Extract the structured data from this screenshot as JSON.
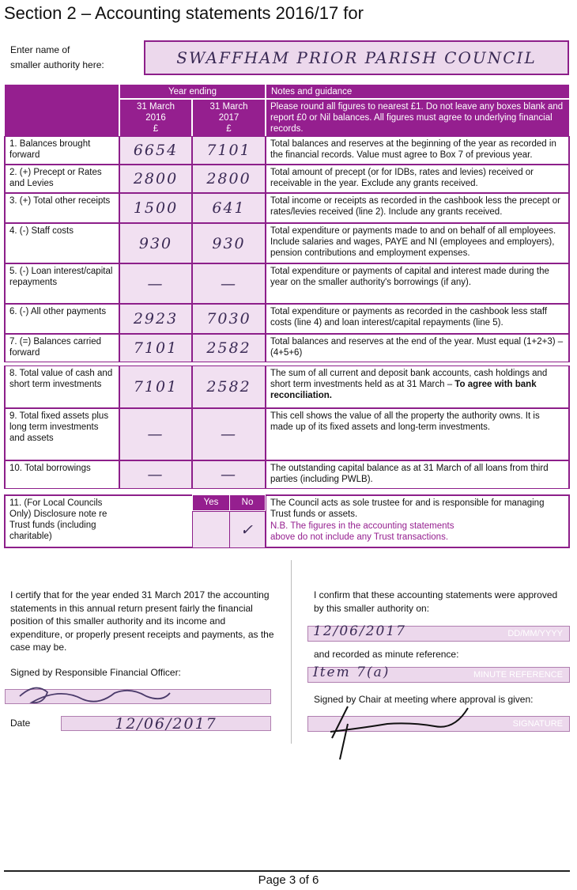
{
  "title": "Section 2 – Accounting statements 2016/17 for",
  "authority": {
    "label_line1": "Enter name of",
    "label_line2": "smaller authority here:",
    "value": "SWAFFHAM PRIOR PARISH COUNCIL"
  },
  "header": {
    "year_ending": "Year ending",
    "notes_title": "Notes and guidance",
    "col_2016": [
      "31 March",
      "2016",
      "£"
    ],
    "col_2017": [
      "31 March",
      "2017",
      "£"
    ],
    "notes_text": "Please round all figures to nearest £1. Do not leave any boxes blank and report £0 or Nil balances. All figures must agree to underlying financial records."
  },
  "rows": [
    {
      "label": "1.  Balances brought forward",
      "v2016": "6654",
      "v2017": "7101",
      "note": "Total balances and reserves at the beginning of the year as recorded in the financial records. Value must agree to Box 7 of previous year."
    },
    {
      "label": "2.  (+) Precept or Rates and Levies",
      "v2016": "2800",
      "v2017": "2800",
      "note": "Total amount of precept (or for IDBs, rates and levies) received or receivable in the year. Exclude any grants received."
    },
    {
      "label": "3.  (+) Total other receipts",
      "v2016": "1500",
      "v2017": "641",
      "note": "Total income or receipts as recorded in the cashbook less the precept or rates/levies received (line 2). Include any grants received."
    },
    {
      "label": "4.  (-) Staff costs",
      "v2016": "930",
      "v2017": "930",
      "note": "Total expenditure or payments made to and on behalf of all employees. Include salaries and wages, PAYE and NI (employees and employers), pension contributions and employment expenses."
    },
    {
      "label": "5.  (-) Loan interest/capital repayments",
      "v2016": "—",
      "v2017": "—",
      "note": "Total expenditure or payments of capital and interest made during the year on the smaller authority's borrowings (if any)."
    },
    {
      "label": "6.  (-) All other payments",
      "v2016": "2923",
      "v2017": "7030",
      "note": "Total expenditure or payments as recorded in the cashbook less staff costs (line 4) and loan interest/capital repayments (line 5)."
    },
    {
      "label": "7.  (=) Balances carried forward",
      "v2016": "7101",
      "v2017": "2582",
      "note": "Total balances and reserves at the end of the year. Must equal (1+2+3) – (4+5+6)"
    },
    {
      "label": "8.  Total value of cash and short term investments",
      "v2016": "7101",
      "v2017": "2582",
      "note": "The sum of all current and deposit bank accounts, cash holdings and short term investments held as at 31 March – ",
      "note_bold": "To agree with bank reconciliation."
    },
    {
      "label": "9.  Total fixed assets plus long term investments and assets",
      "v2016": "—",
      "v2017": "—",
      "note": "This cell shows the value of all the property the authority owns. It is made up of its fixed assets and long-term investments."
    },
    {
      "label": "10. Total borrowings",
      "v2016": "—",
      "v2017": "—",
      "note": "The outstanding capital balance as at 31 March of all loans from third parties (including PWLB)."
    }
  ],
  "row11": {
    "label": "11. (For Local Councils Only) Disclosure note re Trust funds (including charitable)",
    "yes": "Yes",
    "no": "No",
    "no_value": "✓",
    "note": "The Council acts as sole trustee for and is responsible for managing Trust funds or assets.",
    "note_nb": "N.B. The figures in the accounting statements above do not include any Trust transactions."
  },
  "certify": {
    "text": "I certify that for the year ended 31 March 2017 the accounting statements in this annual return present fairly the financial position of this smaller authority and its income and expenditure, or properly present receipts and payments, as the case may be.",
    "signed_label": "Signed by Responsible Financial Officer:",
    "date_label": "Date",
    "date_value": "12/06/2017"
  },
  "approval": {
    "text": "I confirm that these accounting statements were approved by this smaller authority on:",
    "date_placeholder": "DD/MM/YYYY",
    "date_value": "12/06/2017",
    "minute_label": "and recorded as minute reference:",
    "minute_placeholder": "MINUTE REFERENCE",
    "minute_value": "Item 7(a)",
    "chair_label": "Signed by Chair at meeting where approval is given:",
    "signature_placeholder": "SIGNATURE"
  },
  "footer": {
    "page": "Page 3 of 6"
  },
  "colors": {
    "purple": "#951f8f",
    "light": "#f1e0f1"
  }
}
